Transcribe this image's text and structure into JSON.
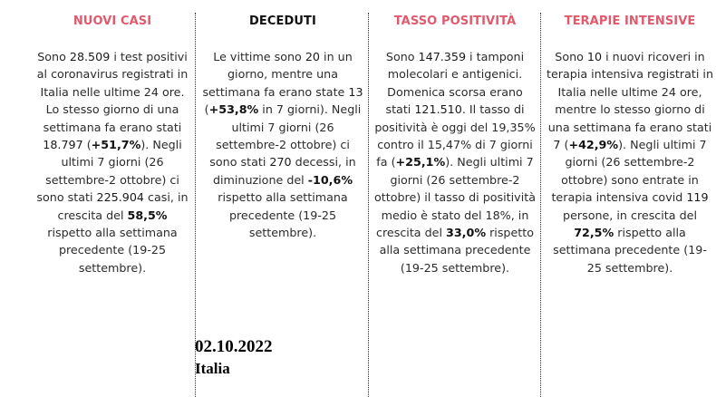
{
  "colors": {
    "accent": "#e05a6e",
    "text": "#2b2b2b",
    "dark_heading": "#111111"
  },
  "columns": [
    {
      "heading": "NUOVI CASI",
      "segments": [
        {
          "t": "Sono "
        },
        {
          "t": "28.509",
          "n": true
        },
        {
          "t": " i test positivi al coronavirus registrati in Italia nelle ultime 24 ore. Lo stesso giorno di una settimana fa erano stati "
        },
        {
          "t": "18.797",
          "n": true
        },
        {
          "t": " ("
        },
        {
          "t": "+51,7%",
          "b": true
        },
        {
          "t": "). Negli ultimi 7 giorni (26 settembre-2 ottobre) ci sono stati "
        },
        {
          "t": "225.904",
          "n": true
        },
        {
          "t": " casi, in crescita del "
        },
        {
          "t": "58,5%",
          "b": true
        },
        {
          "t": " rispetto alla settimana precedente (19-25 settembre)."
        }
      ]
    },
    {
      "heading": "DECEDUTI",
      "segments": [
        {
          "t": "Le vittime sono "
        },
        {
          "t": "20",
          "n": true
        },
        {
          "t": " in un giorno, mentre una settimana fa erano state "
        },
        {
          "t": "13",
          "n": true
        },
        {
          "t": " ("
        },
        {
          "t": "+53,8%",
          "b": true
        },
        {
          "t": " in 7 giorni). Negli ultimi 7 giorni (26 settembre-2 ottobre) ci sono stati "
        },
        {
          "t": "270",
          "n": true
        },
        {
          "t": " decessi, in diminuzione del "
        },
        {
          "t": "-10,6%",
          "b": true
        },
        {
          "t": " rispetto alla settimana precedente (19-25 settembre)."
        }
      ]
    },
    {
      "heading": "TASSO POSITIVITÀ",
      "segments": [
        {
          "t": "Sono "
        },
        {
          "t": "147.359",
          "n": true
        },
        {
          "t": " i tamponi molecolari e antigenici. Domenica scorsa erano stati "
        },
        {
          "t": "121.510",
          "n": true
        },
        {
          "t": ". Il tasso di positività è oggi del 19,35% contro il 15,47% di 7 giorni fa ("
        },
        {
          "t": "+25,1%",
          "b": true
        },
        {
          "t": "). Negli ultimi 7 giorni (26 settembre-2 ottobre) il tasso di positività medio è stato del 18%, in crescita del "
        },
        {
          "t": "33,0%",
          "b": true
        },
        {
          "t": " rispetto alla settimana precedente (19-25 settembre)."
        }
      ]
    },
    {
      "heading": "TERAPIE INTENSIVE",
      "segments": [
        {
          "t": "Sono "
        },
        {
          "t": "10",
          "n": true
        },
        {
          "t": " i nuovi ricoveri in terapia intensiva registrati in Italia nelle ultime 24 ore, mentre lo stesso giorno di una settimana fa erano stati "
        },
        {
          "t": "7",
          "n": true
        },
        {
          "t": " ("
        },
        {
          "t": "+42,9%",
          "b": true
        },
        {
          "t": "). Negli ultimi 7 giorni (26 settembre-2 ottobre) sono entrate in terapia intensiva covid "
        },
        {
          "t": "119",
          "n": true
        },
        {
          "t": " persone, in crescita del "
        },
        {
          "t": "72,5%",
          "b": true
        },
        {
          "t": " rispetto alla settimana precedente (19-25 settembre)."
        }
      ]
    }
  ],
  "stamp": {
    "date": "02.10.2022",
    "place": "Italia"
  }
}
